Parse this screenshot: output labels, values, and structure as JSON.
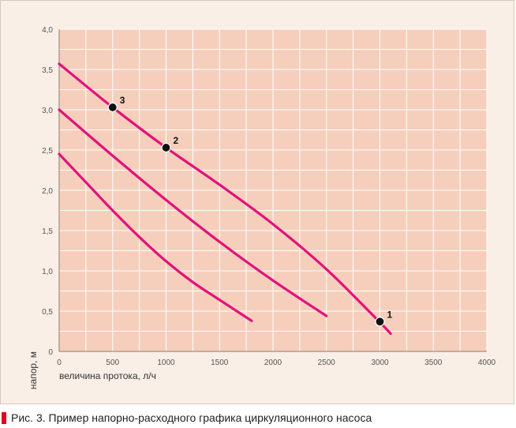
{
  "chart_data": {
    "type": "line",
    "title": "",
    "xlabel": "величина протока, л/ч",
    "ylabel": "напор, м",
    "xlim": [
      0,
      4000
    ],
    "ylim": [
      0,
      4.0
    ],
    "x_ticks": [
      0,
      500,
      1000,
      1500,
      2000,
      2500,
      3000,
      3500,
      4000
    ],
    "x_tick_labels": [
      "0",
      "500",
      "1000",
      "1500",
      "2000",
      "2500",
      "3000",
      "3500",
      "4000"
    ],
    "y_ticks": [
      0,
      0.5,
      1.0,
      1.5,
      2.0,
      2.5,
      3.0,
      3.5,
      4.0
    ],
    "y_tick_labels": [
      "0",
      "0,5",
      "1,0",
      "1,5",
      "2,0",
      "2,5",
      "3,0",
      "3,5",
      "4,0"
    ],
    "grid": true,
    "series": [
      {
        "name": "curve-low",
        "x": [
          0,
          250,
          500,
          750,
          1000,
          1250,
          1500,
          1800
        ],
        "y": [
          2.45,
          2.1,
          1.75,
          1.42,
          1.12,
          0.86,
          0.64,
          0.38
        ]
      },
      {
        "name": "curve-mid",
        "x": [
          0,
          500,
          1000,
          1500,
          2000,
          2500
        ],
        "y": [
          3.0,
          2.43,
          1.88,
          1.36,
          0.88,
          0.44
        ]
      },
      {
        "name": "curve-high",
        "x": [
          0,
          500,
          1000,
          1500,
          2000,
          2500,
          3000,
          3100
        ],
        "y": [
          3.57,
          3.03,
          2.53,
          2.07,
          1.58,
          1.02,
          0.36,
          0.22
        ]
      }
    ],
    "points": [
      {
        "label": "1",
        "x": 3000,
        "y": 0.37
      },
      {
        "label": "2",
        "x": 1000,
        "y": 2.53
      },
      {
        "label": "3",
        "x": 500,
        "y": 3.03
      }
    ]
  },
  "colors": {
    "plot_bg": "#f6cfbc",
    "grid": "#ffffff",
    "curve": "#e2127b",
    "marker": "#111111",
    "caption_marker": "#e2001a"
  },
  "caption": {
    "text": "Рис. 3. Пример напорно-расходного графика циркуляционного насоса"
  }
}
